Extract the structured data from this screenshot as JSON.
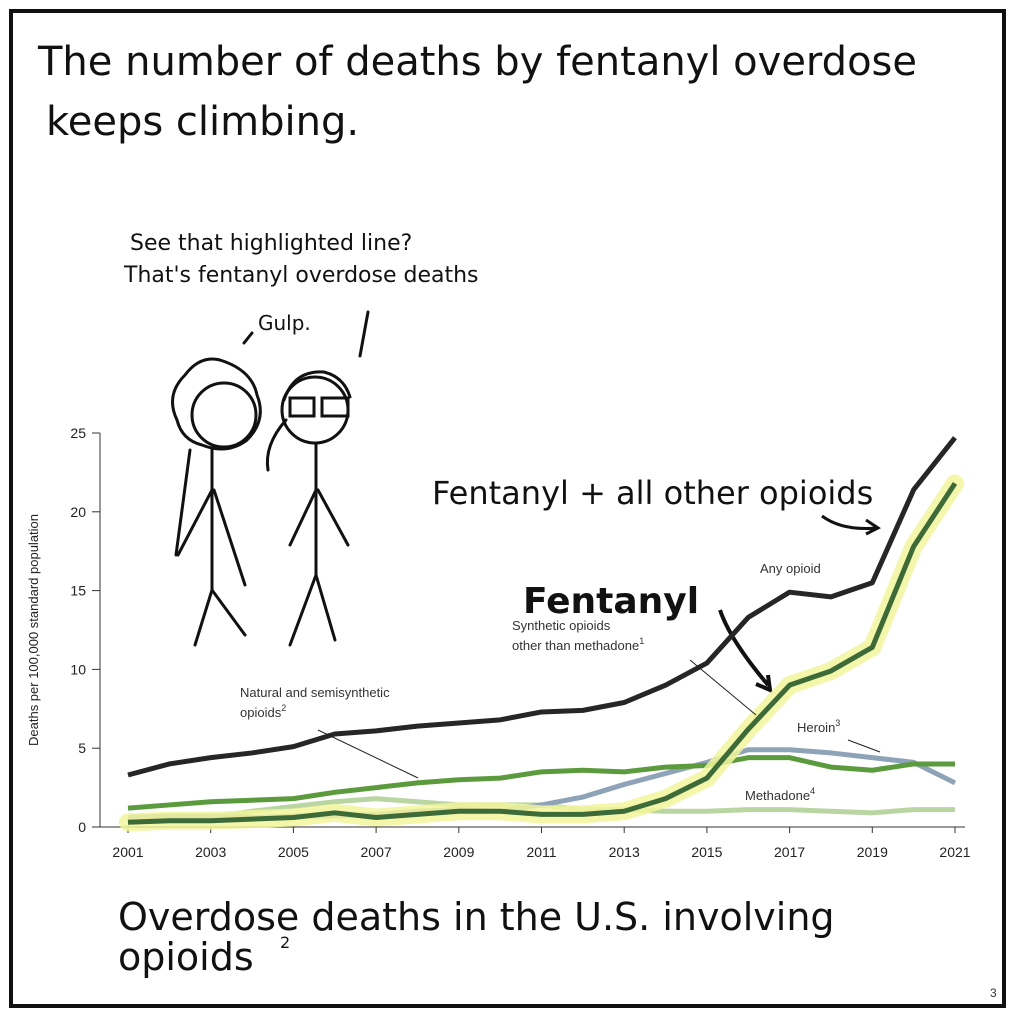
{
  "comic": {
    "title_lines": [
      "The number of deaths by fentanyl overdose",
      "keeps climbing."
    ],
    "speech_lines": [
      "See that highlighted line?",
      "That's fentanyl overdose deaths"
    ],
    "reply": "Gulp."
  },
  "chart_data": {
    "type": "line",
    "y_label": "Deaths per 100,000 standard population",
    "x": [
      2001,
      2002,
      2003,
      2004,
      2005,
      2006,
      2007,
      2008,
      2009,
      2010,
      2011,
      2012,
      2013,
      2014,
      2015,
      2016,
      2017,
      2018,
      2019,
      2020,
      2021
    ],
    "xlim": [
      2001,
      2021
    ],
    "xticks": [
      2001,
      2003,
      2005,
      2007,
      2009,
      2011,
      2013,
      2015,
      2017,
      2019,
      2021
    ],
    "ylim": [
      0,
      25
    ],
    "yticks": [
      0,
      5,
      10,
      15,
      20,
      25
    ],
    "series": [
      {
        "name": "Any opioid",
        "color": "#262626",
        "values": [
          3.3,
          4.0,
          4.4,
          4.7,
          5.1,
          5.9,
          6.1,
          6.4,
          6.6,
          6.8,
          7.3,
          7.4,
          7.9,
          9.0,
          10.4,
          13.3,
          14.9,
          14.6,
          15.5,
          21.4,
          24.7
        ]
      },
      {
        "name": "Synthetic opioids",
        "name_line2": "other than methadone",
        "note": "1",
        "color": "#3c6a38",
        "highlight": "#f2f59a",
        "values": [
          0.3,
          0.4,
          0.4,
          0.5,
          0.6,
          0.9,
          0.6,
          0.8,
          1.0,
          1.0,
          0.8,
          0.8,
          1.0,
          1.8,
          3.1,
          6.2,
          9.0,
          9.9,
          11.4,
          17.8,
          21.8
        ]
      },
      {
        "name": "Natural and semisynthetic",
        "name_line2": "opioids",
        "note": "2",
        "color": "#5b9b3d",
        "values": [
          1.2,
          1.4,
          1.6,
          1.7,
          1.8,
          2.2,
          2.5,
          2.8,
          3.0,
          3.1,
          3.5,
          3.6,
          3.5,
          3.8,
          3.9,
          4.4,
          4.4,
          3.8,
          3.6,
          4.0,
          4.0
        ]
      },
      {
        "name": "Heroin",
        "note": "3",
        "color": "#8ea3b8",
        "values": [
          0.6,
          0.7,
          0.7,
          0.6,
          0.7,
          0.7,
          0.8,
          1.0,
          1.1,
          1.0,
          1.4,
          1.9,
          2.7,
          3.4,
          4.1,
          4.9,
          4.9,
          4.7,
          4.4,
          4.1,
          2.8
        ]
      },
      {
        "name": "Methadone",
        "note": "4",
        "color": "#b9d6a2",
        "values": [
          0.3,
          0.4,
          0.6,
          1.0,
          1.3,
          1.6,
          1.8,
          1.6,
          1.4,
          1.4,
          1.4,
          1.1,
          1.1,
          1.0,
          1.0,
          1.1,
          1.1,
          1.0,
          0.9,
          1.1,
          1.1
        ]
      }
    ],
    "annotations": [
      "Fentanyl + all other opioids",
      "Fentanyl"
    ]
  },
  "caption": "Overdose deaths in the U.S. involving",
  "caption_line2": "opioids",
  "caption_note": "2",
  "page_number": "3"
}
